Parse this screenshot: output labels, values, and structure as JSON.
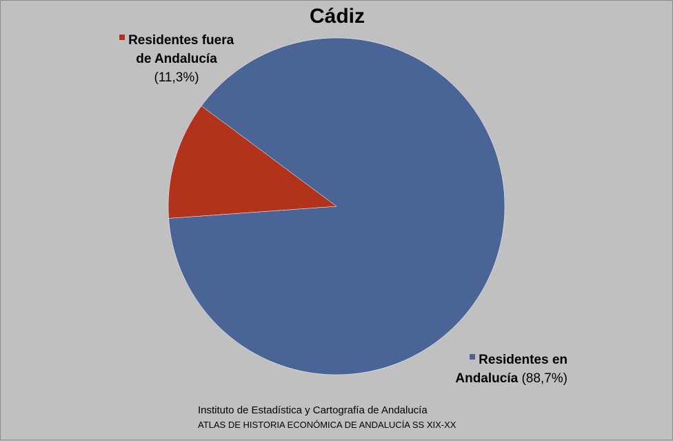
{
  "chart_data": {
    "type": "pie",
    "title": "Cádiz",
    "slices": [
      {
        "name_line1": "Residentes en",
        "name_line2": "Andalucía",
        "pct_label": "(88,7%)",
        "value": 88.7,
        "color": "#4a6496"
      },
      {
        "name_line1": "Residentes fuera",
        "name_line2": "de Andalucía",
        "pct_label": "(11,3%)",
        "value": 11.3,
        "color": "#b1331b"
      }
    ]
  },
  "source": {
    "line1": "Instituto de Estadística y Cartografía de Andalucía",
    "line2": "ATLAS DE HISTORIA ECONÓMICA DE ANDALUCÍA SS XIX-XX"
  }
}
